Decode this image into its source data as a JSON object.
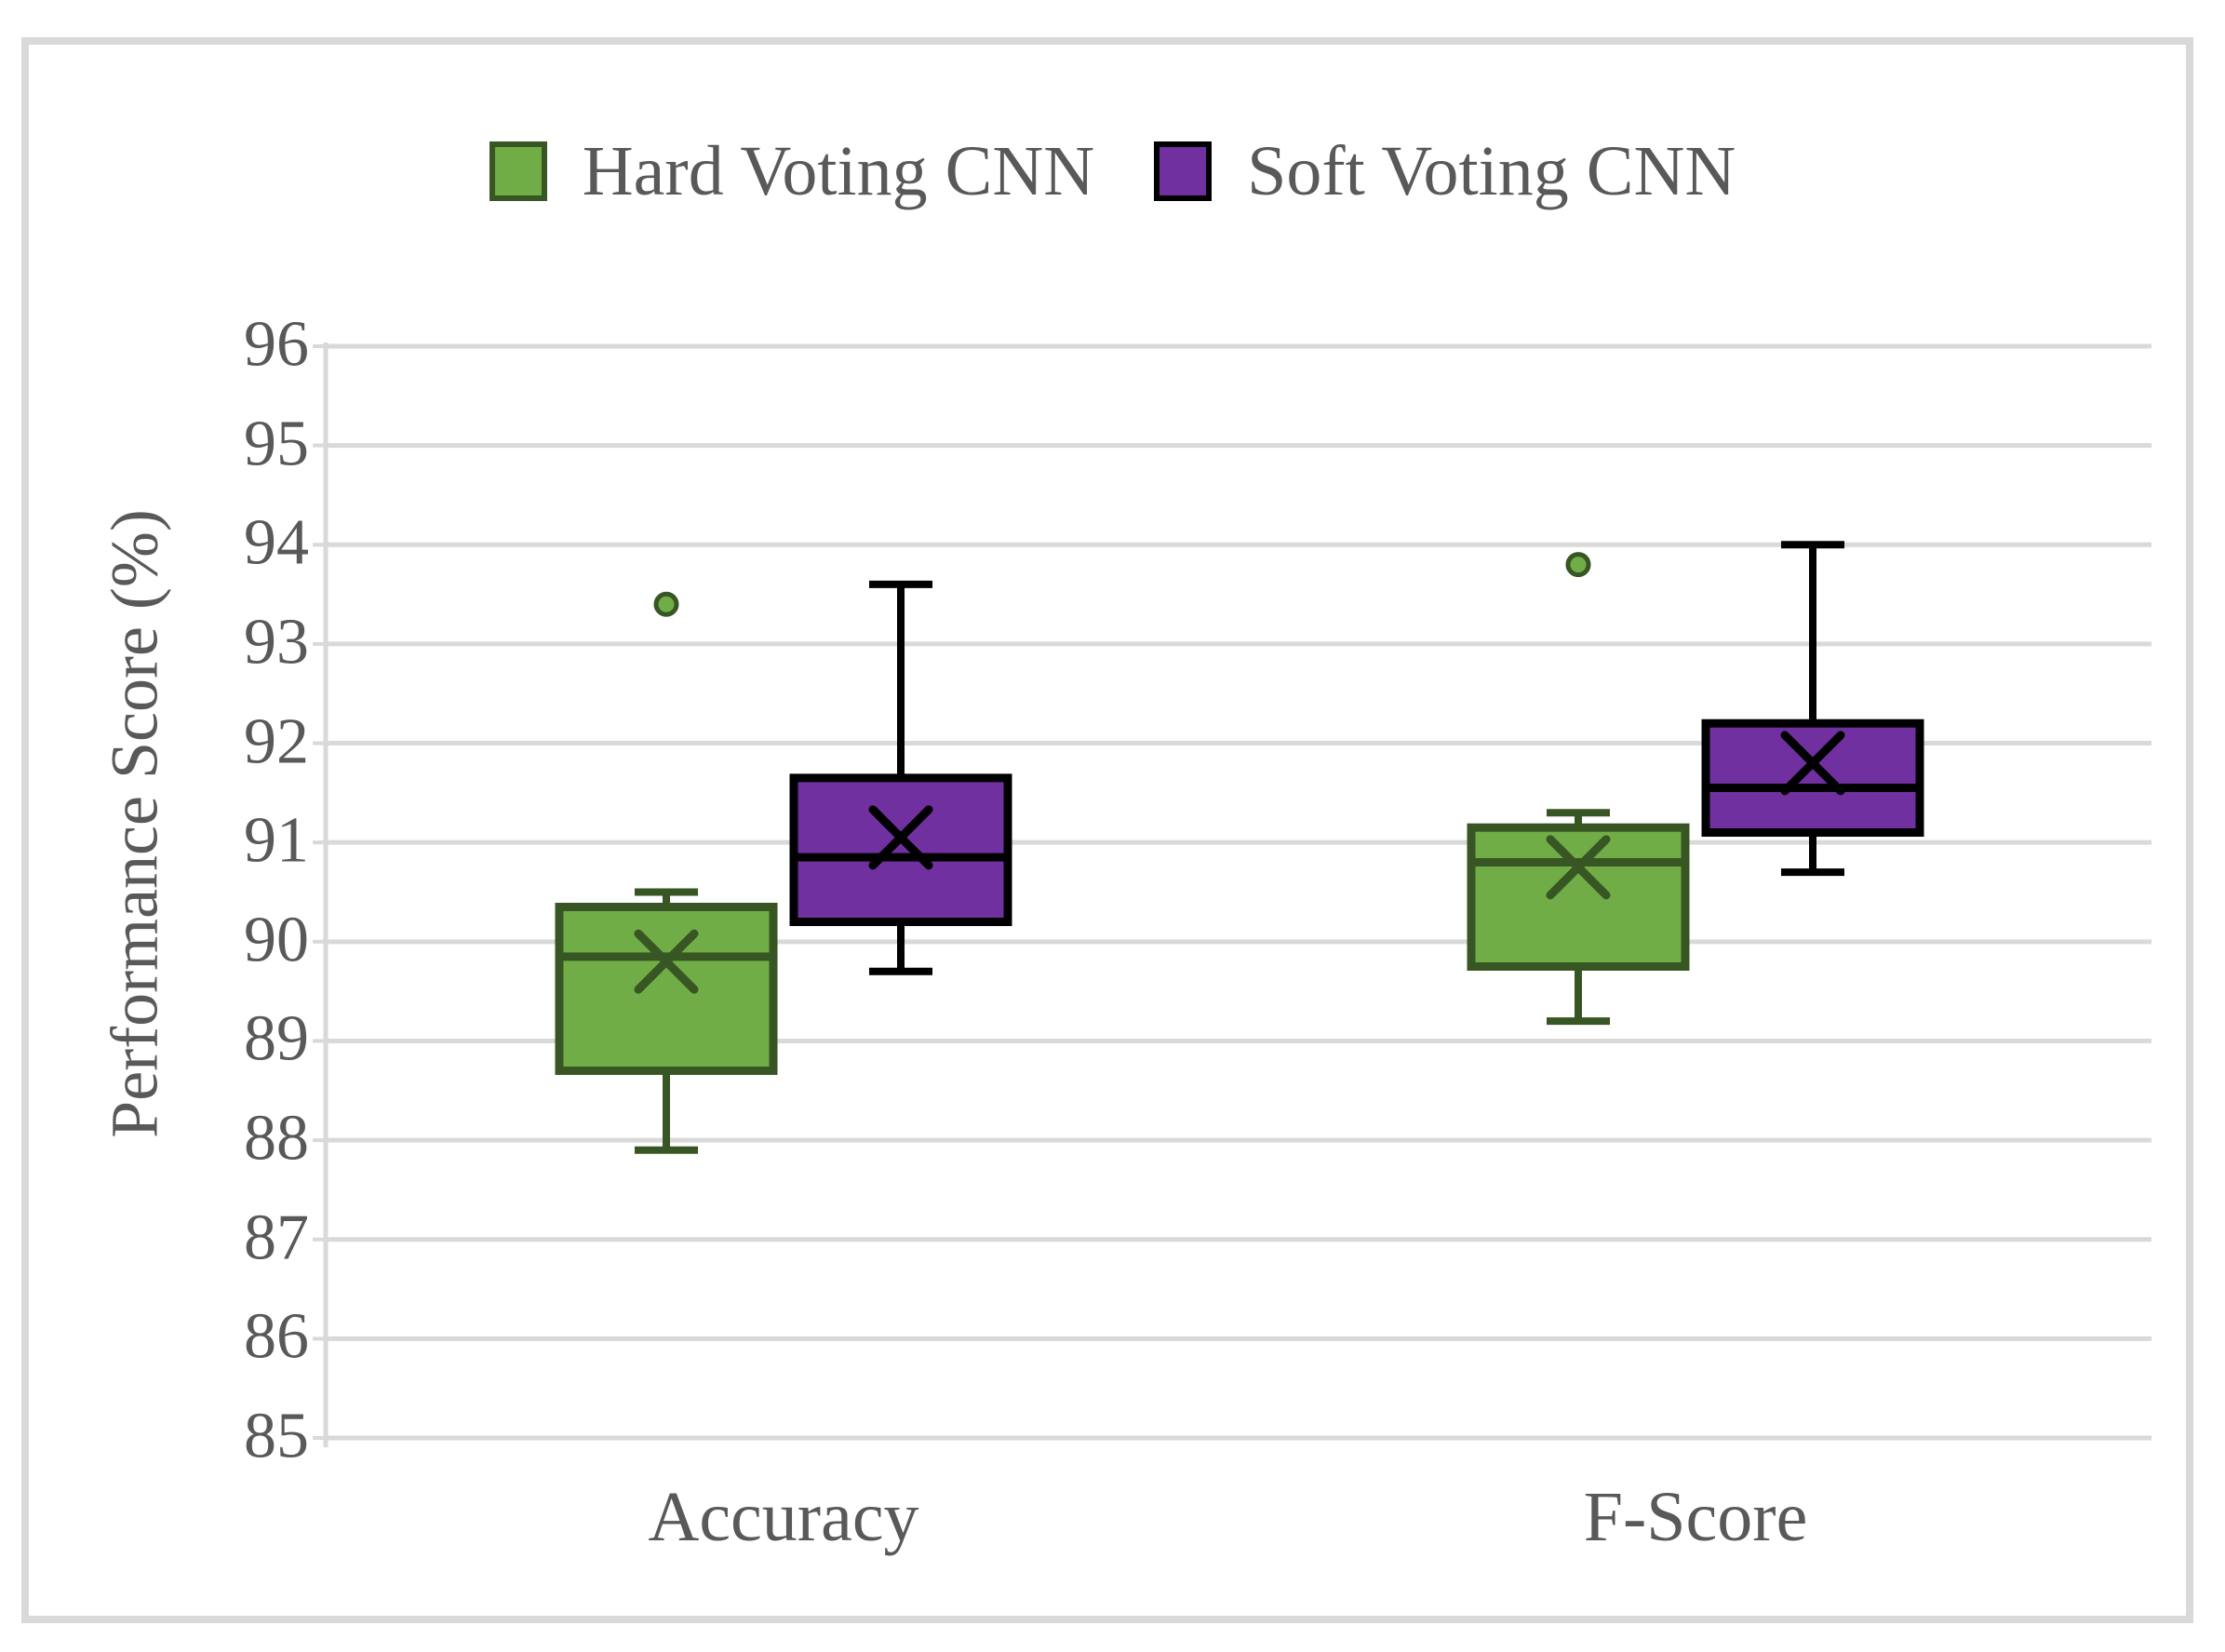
{
  "figure": {
    "background": "#FFFFFF",
    "frame_color": "#D9D9D9",
    "text_color": "#595959"
  },
  "legend": {
    "items": [
      {
        "label": "Hard Voting CNN",
        "swatch_fill": "#70AD47",
        "swatch_border": "#375623"
      },
      {
        "label": "Soft Voting CNN",
        "swatch_fill": "#7030A0",
        "swatch_border": "#000000"
      }
    ]
  },
  "chart_data": {
    "type": "boxplot",
    "title": "",
    "ylabel": "Performance Score (%)",
    "xlabel": "",
    "ylim": [
      85,
      96
    ],
    "yticks": [
      85,
      86,
      87,
      88,
      89,
      90,
      91,
      92,
      93,
      94,
      95,
      96
    ],
    "categories": [
      "Accuracy",
      "F-Score"
    ],
    "grid": true,
    "legend_position": "top",
    "gridline_color": "#D9D9D9",
    "series": [
      {
        "name": "Hard Voting CNN",
        "fill": "#70AD47",
        "border": "#375623",
        "boxes": [
          {
            "category": "Accuracy",
            "whisker_low": 87.9,
            "q1": 88.7,
            "median": 89.85,
            "q3": 90.35,
            "whisker_high": 90.5,
            "mean": 89.8,
            "outliers": [
              93.4
            ]
          },
          {
            "category": "F-Score",
            "whisker_low": 89.2,
            "q1": 89.75,
            "median": 90.8,
            "q3": 91.15,
            "whisker_high": 91.3,
            "mean": 90.75,
            "outliers": [
              93.8
            ]
          }
        ]
      },
      {
        "name": "Soft Voting CNN",
        "fill": "#7030A0",
        "border": "#000000",
        "boxes": [
          {
            "category": "Accuracy",
            "whisker_low": 89.7,
            "q1": 90.2,
            "median": 90.85,
            "q3": 91.65,
            "whisker_high": 93.6,
            "mean": 91.05,
            "outliers": []
          },
          {
            "category": "F-Score",
            "whisker_low": 90.7,
            "q1": 91.1,
            "median": 91.55,
            "q3": 92.2,
            "whisker_high": 94.0,
            "mean": 91.8,
            "outliers": []
          }
        ]
      }
    ]
  }
}
